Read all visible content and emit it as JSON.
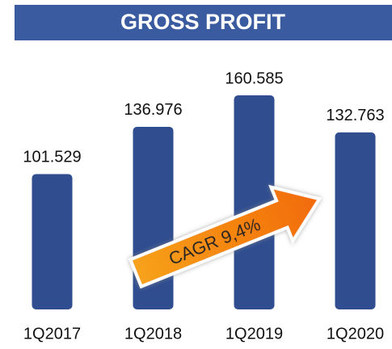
{
  "chart_data": {
    "type": "bar",
    "title": "GROSS PROFIT",
    "categories": [
      "1Q2017",
      "1Q2018",
      "1Q2019",
      "1Q2020"
    ],
    "values": [
      101.529,
      136.976,
      160.585,
      132.763
    ],
    "color": "#2f4d8f",
    "annotation": "CAGR 9,4%"
  }
}
